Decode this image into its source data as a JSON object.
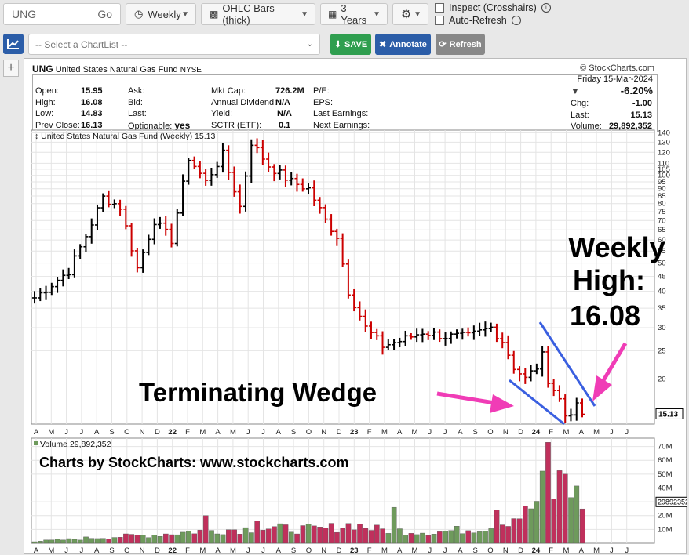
{
  "toolbar": {
    "symbol_value": "UNG",
    "go_label": "Go",
    "period": "Weekly",
    "chart_type": "OHLC Bars (thick)",
    "range": "3 Years",
    "inspect_label": "Inspect (Crosshairs)",
    "autorefresh_label": "Auto-Refresh",
    "chartlist_placeholder": "-- Select a ChartList --",
    "save_label": "SAVE",
    "annotate_label": "Annotate",
    "refresh_label": "Refresh",
    "plus_label": "+"
  },
  "header": {
    "symbol": "UNG",
    "name": "United States Natural Gas Fund",
    "exchange": "NYSE",
    "brand": "© StockCharts.com",
    "date_line": "Friday  15-Mar-2024",
    "pct_change": "-6.20%",
    "col1": [
      {
        "label": "Open:",
        "value": "15.95"
      },
      {
        "label": "High:",
        "value": "16.08"
      },
      {
        "label": "Low:",
        "value": "14.83"
      },
      {
        "label": "Prev Close:",
        "value": "16.13"
      }
    ],
    "col2": [
      {
        "label": "Ask:",
        "value": ""
      },
      {
        "label": "Bid:",
        "value": ""
      },
      {
        "label": "Last:",
        "value": ""
      },
      {
        "label": "Optionable:",
        "value": "yes"
      }
    ],
    "col3": [
      {
        "label": "Mkt Cap:",
        "value": "726.2M"
      },
      {
        "label": "Annual Dividend:",
        "value": "N/A"
      },
      {
        "label": "Yield:",
        "value": "N/A"
      },
      {
        "label": "SCTR (ETF):",
        "value": "0.1"
      }
    ],
    "col4": [
      {
        "label": "P/E:",
        "value": ""
      },
      {
        "label": "EPS:",
        "value": ""
      },
      {
        "label": "Last Earnings:",
        "value": ""
      },
      {
        "label": "Next Earnings:",
        "value": ""
      }
    ],
    "col5": [
      {
        "label": "Chg:",
        "value": "-1.00"
      },
      {
        "label": "Last:",
        "value": "15.13"
      },
      {
        "label": "Volume:",
        "value": "29,892,352"
      }
    ]
  },
  "chart_data": {
    "type": "ohlc",
    "title": "United States Natural Gas Fund (Weekly) 15.13",
    "volume_title": "Volume 29,892,352",
    "price_scale": "log",
    "price_ticks": [
      140,
      130,
      120,
      110,
      105,
      100,
      95,
      90,
      85,
      80,
      75,
      70,
      65,
      60,
      55,
      50,
      45,
      40,
      35,
      30,
      25,
      20
    ],
    "last_price_label": "15.13",
    "volume_ticks": [
      "70M",
      "60M",
      "50M",
      "40M",
      "30M",
      "20M",
      "10M"
    ],
    "volume_marker": "29892352",
    "x_labels": [
      "A",
      "M",
      "J",
      "J",
      "A",
      "S",
      "O",
      "N",
      "D",
      "22",
      "F",
      "M",
      "A",
      "M",
      "J",
      "J",
      "A",
      "S",
      "O",
      "N",
      "D",
      "23",
      "F",
      "M",
      "A",
      "M",
      "J",
      "J",
      "A",
      "S",
      "O",
      "N",
      "D",
      "24",
      "F",
      "M",
      "A",
      "M",
      "J",
      "J"
    ],
    "close_anchors": [
      [
        0,
        38
      ],
      [
        6,
        47
      ],
      [
        9,
        62
      ],
      [
        12,
        84
      ],
      [
        15,
        78
      ],
      [
        18,
        48
      ],
      [
        21,
        70
      ],
      [
        24,
        60
      ],
      [
        27,
        115
      ],
      [
        30,
        95
      ],
      [
        33,
        118
      ],
      [
        36,
        78
      ],
      [
        38,
        130
      ],
      [
        41,
        108
      ],
      [
        45,
        95
      ],
      [
        48,
        90
      ],
      [
        51,
        70
      ],
      [
        53,
        62
      ],
      [
        55,
        40
      ],
      [
        58,
        30
      ],
      [
        61,
        26
      ],
      [
        64,
        27
      ],
      [
        68,
        29
      ],
      [
        72,
        28
      ],
      [
        76,
        28
      ],
      [
        80,
        30
      ],
      [
        82,
        27
      ],
      [
        84,
        22
      ],
      [
        86,
        20
      ],
      [
        88,
        22
      ],
      [
        89,
        24
      ],
      [
        90,
        20
      ],
      [
        92,
        17
      ],
      [
        93,
        15
      ],
      [
        95,
        16
      ],
      [
        96,
        15.1
      ]
    ],
    "volume_anchors": [
      [
        0,
        1.5
      ],
      [
        10,
        4
      ],
      [
        20,
        6
      ],
      [
        29,
        9
      ],
      [
        40,
        11
      ],
      [
        50,
        10
      ],
      [
        56,
        14
      ],
      [
        60,
        10
      ],
      [
        70,
        8
      ],
      [
        80,
        12
      ],
      [
        84,
        19
      ],
      [
        86,
        22
      ],
      [
        88,
        30
      ],
      [
        89,
        41
      ],
      [
        90,
        28
      ],
      [
        92,
        45
      ],
      [
        94,
        40
      ],
      [
        96,
        30
      ]
    ],
    "volume_spikes": [
      [
        30,
        20
      ],
      [
        39,
        16
      ],
      [
        63,
        26
      ],
      [
        81,
        24
      ],
      [
        90,
        73
      ],
      [
        93,
        50
      ]
    ],
    "annotations": {
      "wedge": "Terminating Wedge",
      "weekly_line1": "Weekly",
      "weekly_line2": "High:",
      "weekly_value": "16.08",
      "credit": "Charts by StockCharts:  www.stockcharts.com"
    },
    "colors": {
      "up": "#000000",
      "down": "#cc0000",
      "vol_up": "#6e9a5c",
      "vol_down": "#c0305c",
      "trendline": "#3a5fe0",
      "arrow": "#f03cb6"
    }
  }
}
